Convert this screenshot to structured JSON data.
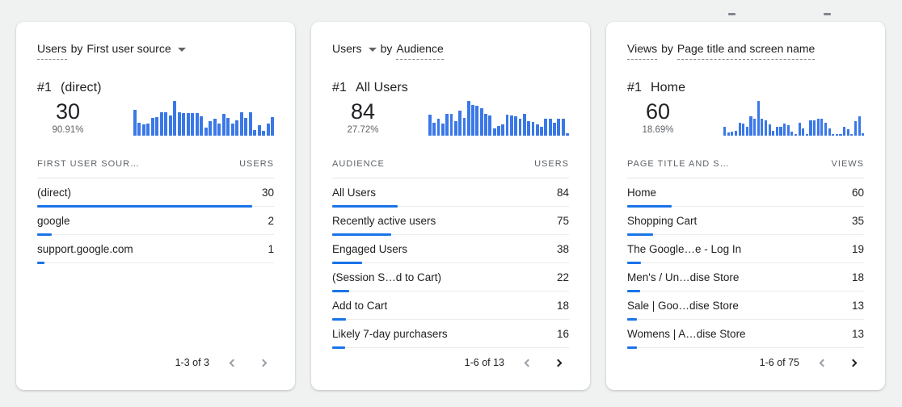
{
  "cards": [
    {
      "header": {
        "segments": [
          {
            "text": "Users",
            "dashed": true,
            "caret": false
          },
          {
            "text": "by",
            "dashed": false,
            "caret": false
          },
          {
            "text": "First user source",
            "dashed": false,
            "caret": true
          }
        ]
      },
      "highlight": {
        "rank": "#1",
        "label": "(direct)",
        "value": "30",
        "percent": "90.91%"
      },
      "sparkline": [
        75,
        38,
        32,
        36,
        51,
        53,
        67,
        67,
        58,
        100,
        68,
        64,
        64,
        64,
        64,
        55,
        24,
        43,
        50,
        36,
        62,
        51,
        36,
        44,
        67,
        51,
        67,
        17,
        30,
        13,
        36,
        53
      ],
      "table": {
        "dimension_header": "FIRST USER SOUR…",
        "metric_header": "USERS",
        "rows": [
          {
            "label": "(direct)",
            "value": "30",
            "bar_pct": 90.9
          },
          {
            "label": "google",
            "value": "2",
            "bar_pct": 6.1
          },
          {
            "label": "support.google.com",
            "value": "1",
            "bar_pct": 3.0
          }
        ]
      },
      "pagination": {
        "range": "1-3 of 3",
        "prev_enabled": false,
        "next_enabled": false
      }
    },
    {
      "header": {
        "segments": [
          {
            "text": "Users",
            "dashed": false,
            "caret": true
          },
          {
            "text": "by",
            "dashed": false,
            "caret": false
          },
          {
            "text": "Audience",
            "dashed": true,
            "caret": false
          }
        ]
      },
      "highlight": {
        "rank": "#1",
        "label": "All Users",
        "value": "84",
        "percent": "27.72%"
      },
      "sparkline": [
        60,
        38,
        48,
        35,
        62,
        62,
        42,
        72,
        52,
        100,
        88,
        85,
        80,
        62,
        58,
        20,
        28,
        32,
        60,
        58,
        55,
        50,
        62,
        42,
        40,
        32,
        25,
        48,
        48,
        38,
        50,
        50,
        6
      ],
      "table": {
        "dimension_header": "AUDIENCE",
        "metric_header": "USERS",
        "rows": [
          {
            "label": "All Users",
            "value": "84",
            "bar_pct": 27.7
          },
          {
            "label": "Recently active users",
            "value": "75",
            "bar_pct": 24.8
          },
          {
            "label": "Engaged Users",
            "value": "38",
            "bar_pct": 12.5
          },
          {
            "label": "(Session S…d to Cart)",
            "value": "22",
            "bar_pct": 7.3
          },
          {
            "label": "Add to Cart",
            "value": "18",
            "bar_pct": 5.9
          },
          {
            "label": "Likely 7-day purchasers",
            "value": "16",
            "bar_pct": 5.3
          }
        ]
      },
      "pagination": {
        "range": "1-6 of 13",
        "prev_enabled": false,
        "next_enabled": true
      }
    },
    {
      "header": {
        "segments": [
          {
            "text": "Views",
            "dashed": true,
            "caret": false
          },
          {
            "text": "by",
            "dashed": false,
            "caret": false
          },
          {
            "text": "Page title and screen name",
            "dashed": true,
            "caret": false
          }
        ]
      },
      "highlight": {
        "rank": "#1",
        "label": "Home",
        "value": "60",
        "percent": "18.69%"
      },
      "sparkline": [
        25,
        10,
        12,
        15,
        38,
        35,
        25,
        55,
        48,
        100,
        50,
        45,
        32,
        15,
        25,
        25,
        35,
        30,
        12,
        4,
        38,
        20,
        4,
        45,
        45,
        50,
        50,
        38,
        22,
        4,
        4,
        4,
        25,
        18,
        4,
        42,
        55,
        8
      ],
      "table": {
        "dimension_header": "PAGE TITLE AND S…",
        "metric_header": "VIEWS",
        "rows": [
          {
            "label": "Home",
            "value": "60",
            "bar_pct": 18.7
          },
          {
            "label": "Shopping Cart",
            "value": "35",
            "bar_pct": 10.9
          },
          {
            "label": "The Google…e - Log In",
            "value": "19",
            "bar_pct": 5.9
          },
          {
            "label": "Men's / Un…dise Store",
            "value": "18",
            "bar_pct": 5.6
          },
          {
            "label": "Sale | Goo…dise Store",
            "value": "13",
            "bar_pct": 4.1
          },
          {
            "label": "Womens | A…dise Store",
            "value": "13",
            "bar_pct": 4.1
          }
        ]
      },
      "pagination": {
        "range": "1-6 of 75",
        "prev_enabled": false,
        "next_enabled": true
      }
    }
  ],
  "colors": {
    "accent_sparkline": "#3B78E7",
    "accent_row_bar": "#1A73E8",
    "text_primary": "#202124",
    "text_secondary": "#5F6368",
    "page_background": "#F0F2F2",
    "card_background": "#FFFFFF"
  }
}
